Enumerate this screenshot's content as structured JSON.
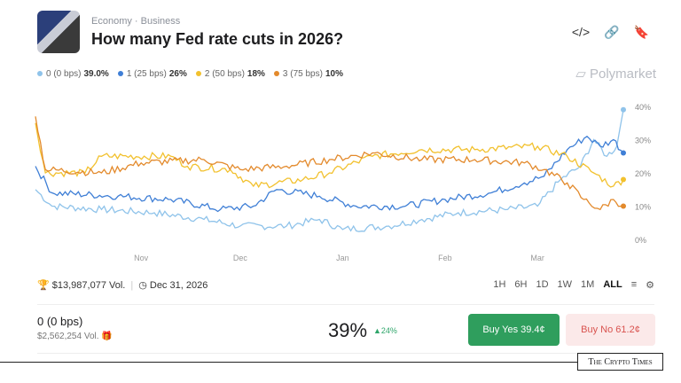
{
  "header": {
    "category": "Economy",
    "subcategory": "Business",
    "title": "How many Fed rate cuts in 2026?",
    "icons": [
      "code-icon",
      "link-icon",
      "bookmark-icon"
    ]
  },
  "brand": "Polymarket",
  "legend": [
    {
      "label": "0 (0 bps)",
      "value": "39.0%",
      "color": "#8fc3ea"
    },
    {
      "label": "1 (25 bps)",
      "value": "26%",
      "color": "#3f7fd6"
    },
    {
      "label": "2 (50 bps)",
      "value": "18%",
      "color": "#f2c12e"
    },
    {
      "label": "3 (75 bps)",
      "value": "10%",
      "color": "#e38a2c"
    }
  ],
  "chart_data": {
    "type": "line",
    "x_ticks": [
      "Nov",
      "Dec",
      "Jan",
      "Feb",
      "Mar"
    ],
    "y_ticks": [
      "0%",
      "10%",
      "20%",
      "30%",
      "40%"
    ],
    "ylim": [
      0,
      42
    ],
    "grid": false,
    "series": [
      {
        "name": "0 (0 bps)",
        "color": "#8fc3ea",
        "points": [
          [
            "Sep 30",
            15
          ],
          [
            "Oct 5",
            10
          ],
          [
            "Oct 20",
            9
          ],
          [
            "Nov 5",
            8
          ],
          [
            "Nov 20",
            6
          ],
          [
            "Dec 1",
            4
          ],
          [
            "Dec 15",
            4
          ],
          [
            "Dec 25",
            6
          ],
          [
            "Jan 1",
            3
          ],
          [
            "Jan 15",
            4
          ],
          [
            "Jan 25",
            6
          ],
          [
            "Feb 5",
            8
          ],
          [
            "Feb 20",
            9
          ],
          [
            "Mar 1",
            10
          ],
          [
            "Mar 8",
            18
          ],
          [
            "Mar 14",
            22
          ],
          [
            "Mar 18",
            30
          ],
          [
            "Mar 22",
            25
          ],
          [
            "Mar 25",
            28
          ],
          [
            "Mar 27",
            39
          ]
        ]
      },
      {
        "name": "1 (25 bps)",
        "color": "#3f7fd6",
        "points": [
          [
            "Sep 30",
            22
          ],
          [
            "Oct 5",
            14
          ],
          [
            "Oct 25",
            13
          ],
          [
            "Nov 10",
            12
          ],
          [
            "Nov 25",
            9
          ],
          [
            "Dec 5",
            10
          ],
          [
            "Dec 12",
            15
          ],
          [
            "Dec 25",
            13
          ],
          [
            "Jan 5",
            10
          ],
          [
            "Jan 20",
            10
          ],
          [
            "Feb 1",
            12
          ],
          [
            "Feb 15",
            14
          ],
          [
            "Feb 25",
            17
          ],
          [
            "Mar 3",
            19
          ],
          [
            "Mar 10",
            27
          ],
          [
            "Mar 16",
            31
          ],
          [
            "Mar 20",
            28
          ],
          [
            "Mar 24",
            30
          ],
          [
            "Mar 27",
            26
          ]
        ]
      },
      {
        "name": "2 (50 bps)",
        "color": "#f2c12e",
        "points": [
          [
            "Sep 30",
            35
          ],
          [
            "Oct 3",
            20
          ],
          [
            "Oct 15",
            20
          ],
          [
            "Oct 20",
            25
          ],
          [
            "Nov 10",
            25
          ],
          [
            "Nov 15",
            22
          ],
          [
            "Nov 28",
            21
          ],
          [
            "Dec 5",
            16
          ],
          [
            "Dec 20",
            18
          ],
          [
            "Dec 28",
            20
          ],
          [
            "Jan 10",
            25
          ],
          [
            "Jan 25",
            27
          ],
          [
            "Feb 10",
            27
          ],
          [
            "Mar 1",
            28
          ],
          [
            "Mar 10",
            25
          ],
          [
            "Mar 18",
            20
          ],
          [
            "Mar 24",
            16
          ],
          [
            "Mar 27",
            18
          ]
        ]
      },
      {
        "name": "3 (75 bps)",
        "color": "#e38a2c",
        "points": [
          [
            "Sep 30",
            37
          ],
          [
            "Oct 3",
            21
          ],
          [
            "Oct 20",
            20
          ],
          [
            "Nov 1",
            23
          ],
          [
            "Nov 20",
            24
          ],
          [
            "Dec 1",
            21
          ],
          [
            "Dec 15",
            22
          ],
          [
            "Dec 28",
            24
          ],
          [
            "Jan 10",
            26
          ],
          [
            "Jan 25",
            24
          ],
          [
            "Feb 10",
            24
          ],
          [
            "Feb 25",
            23
          ],
          [
            "Mar 3",
            21
          ],
          [
            "Mar 10",
            17
          ],
          [
            "Mar 15",
            12
          ],
          [
            "Mar 20",
            9
          ],
          [
            "Mar 24",
            12
          ],
          [
            "Mar 27",
            10
          ]
        ]
      }
    ]
  },
  "meta": {
    "volume": "$13,987,077 Vol.",
    "end_date": "Dec 31, 2026"
  },
  "ranges": [
    "1H",
    "6H",
    "1D",
    "1W",
    "1M",
    "ALL"
  ],
  "active_range": "ALL",
  "outcome": {
    "name": "0 (0 bps)",
    "volume": "$2,562,254 Vol.",
    "percent": "39%",
    "change": "24%",
    "buy_yes": "Buy Yes 39.4¢",
    "buy_no": "Buy No 61.2¢"
  },
  "watermark": "The Crypto Times"
}
